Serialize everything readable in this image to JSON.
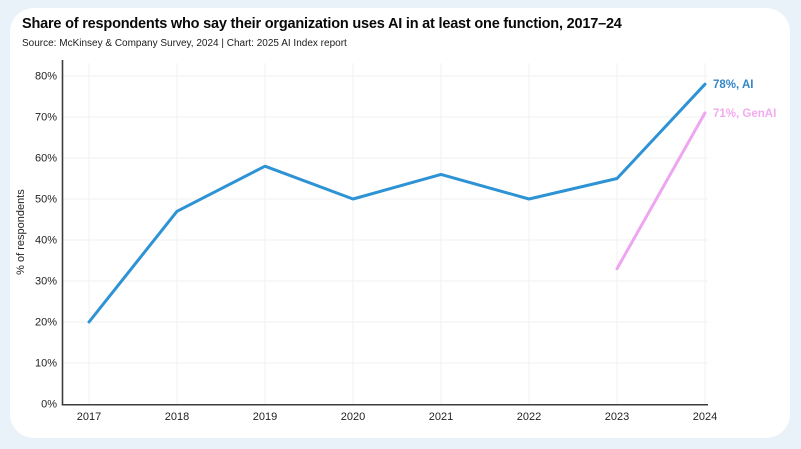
{
  "page": {
    "background_color": "#e9f1f9",
    "card_color": "#ffffff"
  },
  "header": {
    "title": "Share of respondents who say their organization uses AI in at least one function, 2017–24",
    "source": "Source: McKinsey & Company Survey, 2024 | Chart: 2025 AI Index report"
  },
  "chart_data": {
    "type": "line",
    "title": "Share of respondents who say their organization uses AI in at least one function, 2017–24",
    "x": [
      "2017",
      "2018",
      "2019",
      "2020",
      "2021",
      "2022",
      "2023",
      "2024"
    ],
    "series": [
      {
        "name": "AI",
        "values": [
          20,
          47,
          58,
          50,
          56,
          50,
          55,
          78
        ],
        "color": "#2e93d4",
        "end_label": "78%, AI",
        "end_label_color": "#3485c7"
      },
      {
        "name": "GenAI",
        "values": [
          null,
          null,
          null,
          null,
          null,
          null,
          33,
          71
        ],
        "color": "#efa6f0",
        "end_label": "71%, GenAI",
        "end_label_color": "#f2abef"
      }
    ],
    "xlabel": "",
    "ylabel": "% of respondents",
    "ylim": [
      0,
      80
    ],
    "ytick_step": 10,
    "ytick_suffix": "%",
    "grid": true,
    "legend": "end-of-line labels",
    "colors": {
      "axis": "#3d3d3d",
      "gridline": "#f2f2f2",
      "tick_text": "#1f1f1f"
    }
  }
}
